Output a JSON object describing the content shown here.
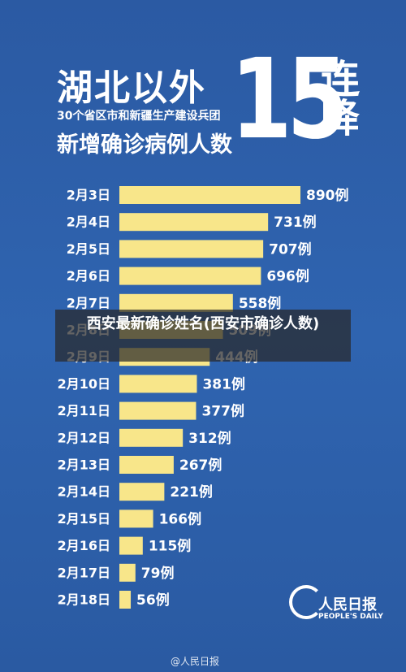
{
  "chart_data": {
    "type": "bar",
    "orientation": "horizontal",
    "title": "湖北以外",
    "headline_number": "15",
    "headline_text": "连降",
    "subtitle": "30个省区市和新疆生产建设兵团",
    "caption": "新增确诊病例人数",
    "categories": [
      "2月3日",
      "2月4日",
      "2月5日",
      "2月6日",
      "2月7日",
      "2月8日",
      "2月9日",
      "2月10日",
      "2月11日",
      "2月12日",
      "2月13日",
      "2月14日",
      "2月15日",
      "2月16日",
      "2月17日",
      "2月18日"
    ],
    "values": [
      890,
      731,
      707,
      696,
      558,
      509,
      444,
      381,
      377,
      312,
      267,
      221,
      166,
      115,
      79,
      56
    ],
    "value_labels": [
      "890例",
      "731例",
      "707例",
      "696例",
      "558例",
      "509例",
      "444例",
      "381例",
      "377例",
      "312例",
      "267例",
      "221例",
      "166例",
      "115例",
      "79例",
      "56例"
    ],
    "color": "#f8e68a"
  },
  "overlay": {
    "text": "西安最新确诊姓名(西安市确诊人数)"
  },
  "logo": {
    "name": "人民日报",
    "english": "PEOPLE'S DAILY"
  },
  "watermark": "@人民日报"
}
